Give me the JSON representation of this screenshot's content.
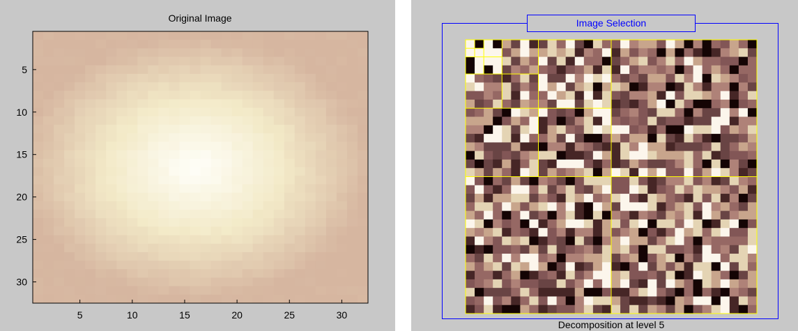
{
  "left_panel": {
    "title": "Original Image",
    "xlim": [
      0.5,
      32.5
    ],
    "ylim": [
      0.5,
      32.5
    ],
    "xticks": [
      5,
      10,
      15,
      20,
      25,
      30
    ],
    "yticks": [
      5,
      10,
      15,
      20,
      25,
      30
    ]
  },
  "right_panel": {
    "frame_title": "Image Selection",
    "caption": "Decomposition at level 5"
  }
}
